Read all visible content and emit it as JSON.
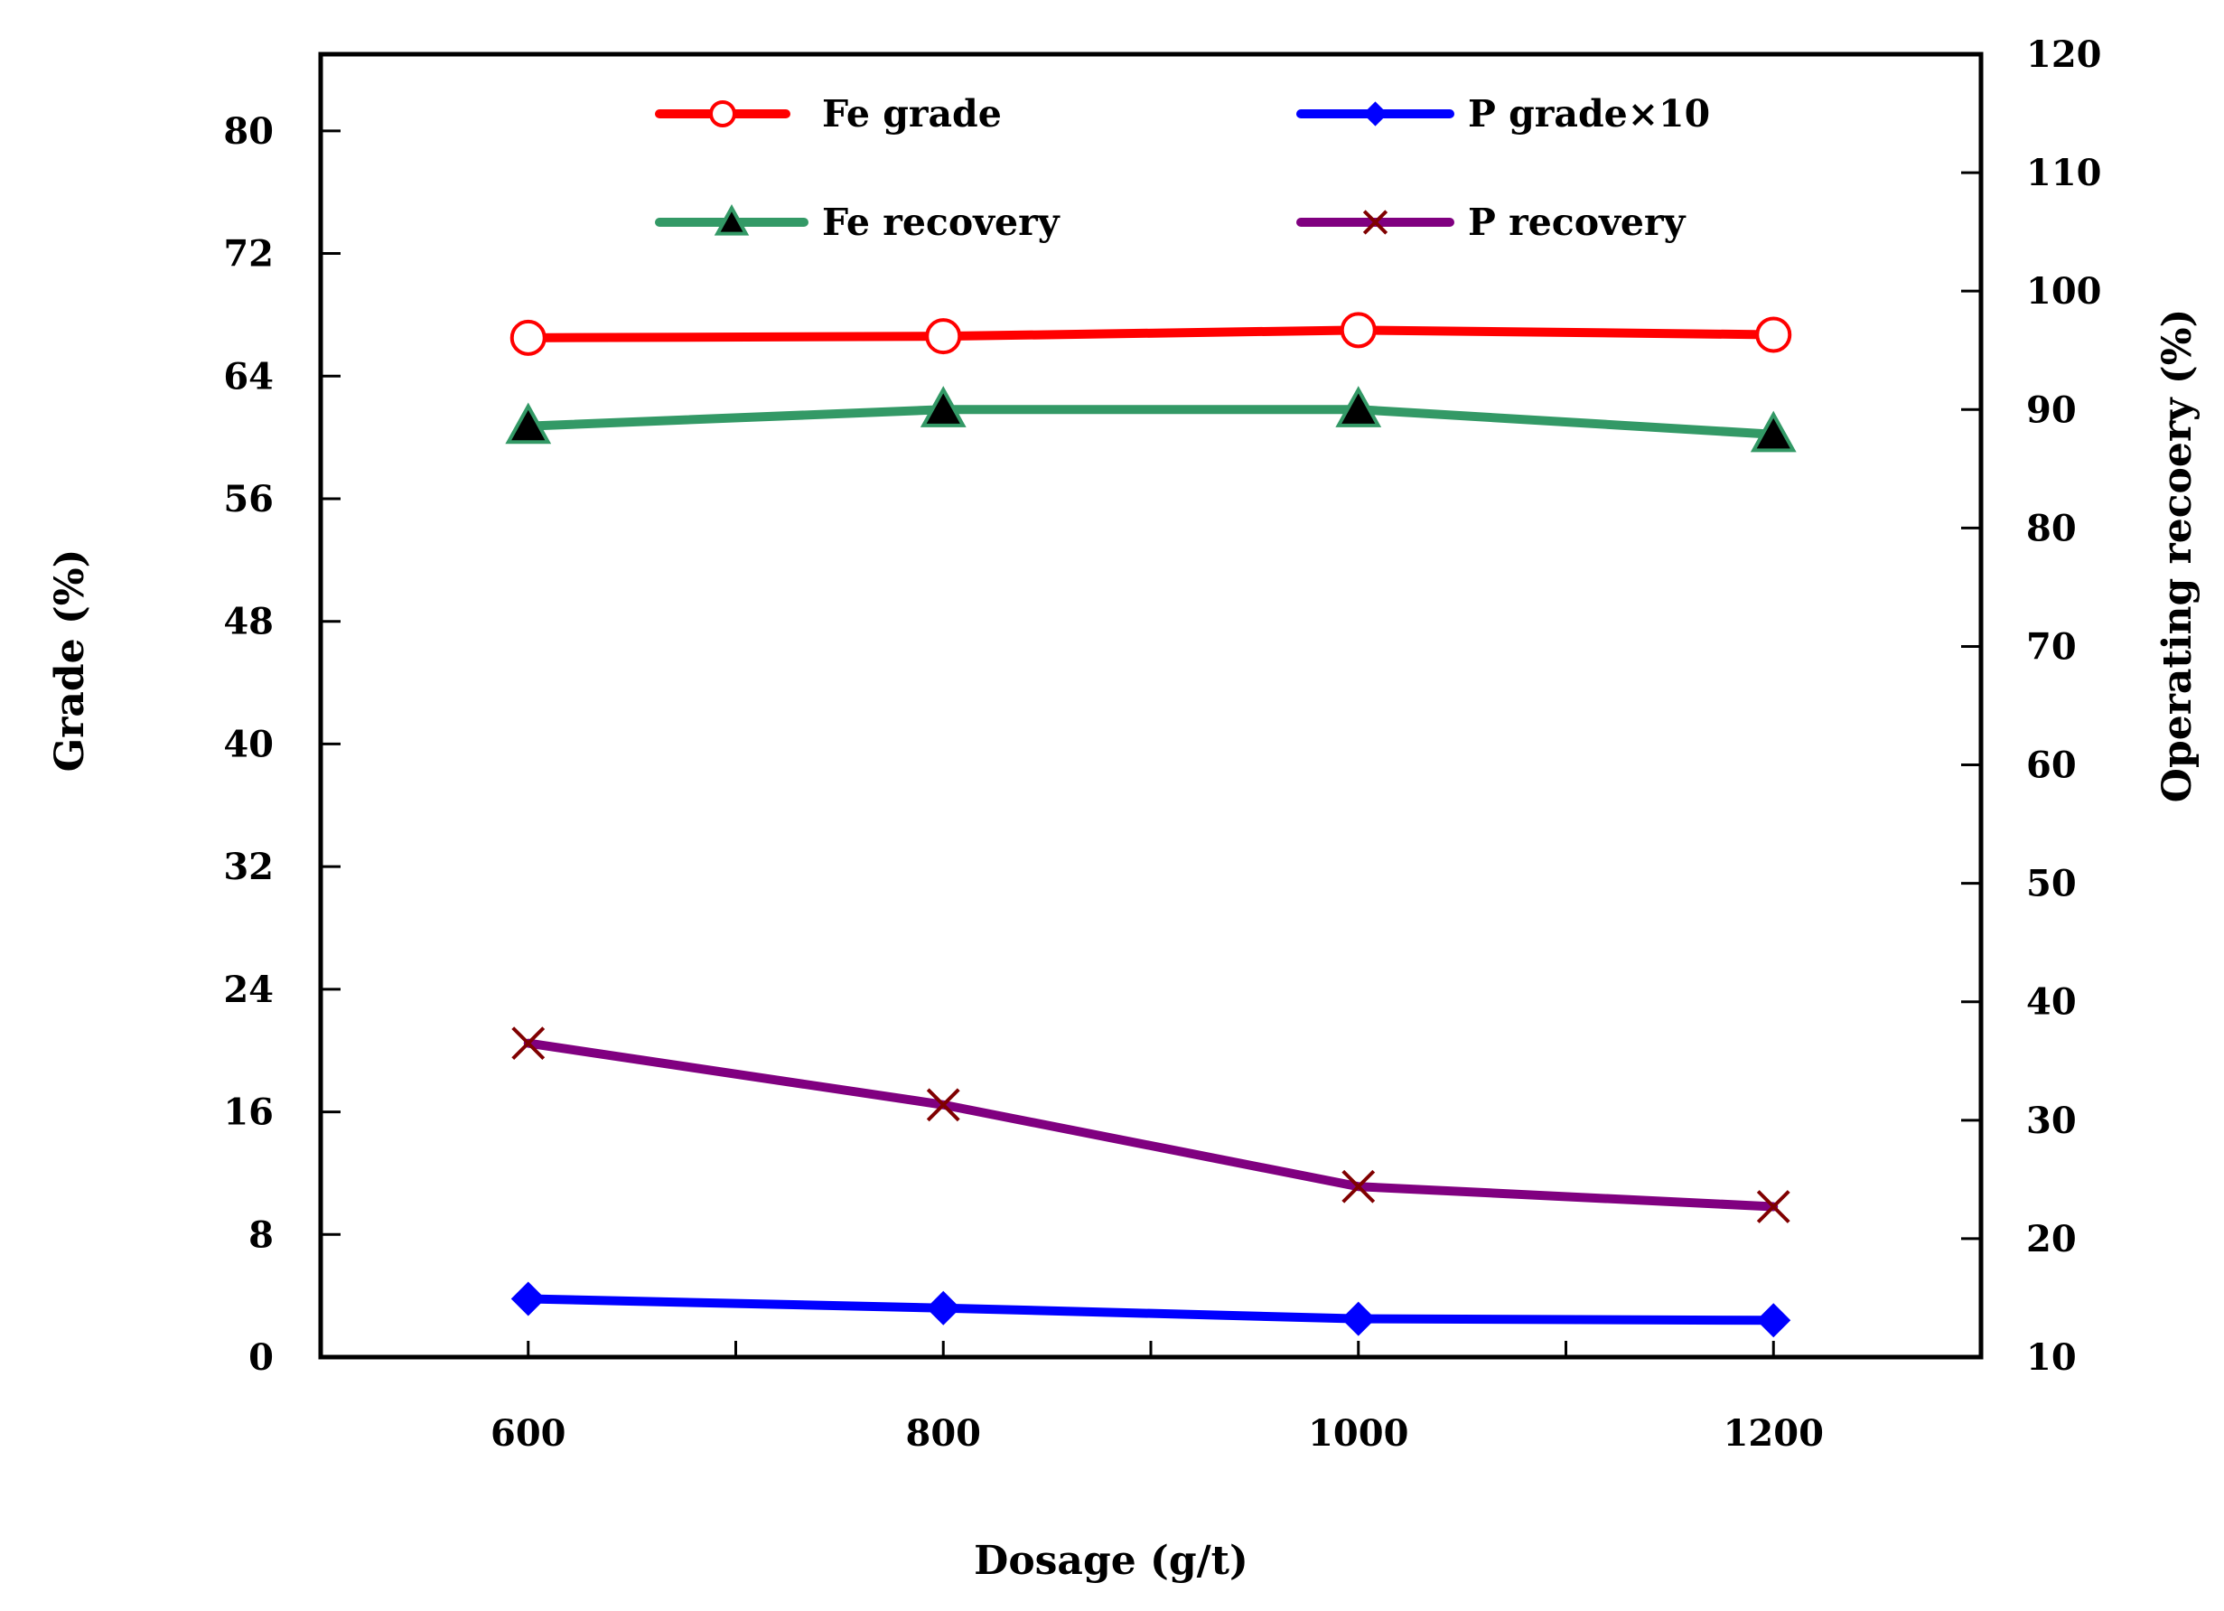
{
  "chart_data": {
    "type": "line",
    "title": "",
    "xlabel": "Dosage (g/t)",
    "ylabel": "Grade (%)",
    "y2label": "Operating recoery (%)",
    "xlim": [
      500,
      1300
    ],
    "ylim": [
      0,
      85
    ],
    "y2lim": [
      10,
      120
    ],
    "x_ticks": [
      600,
      800,
      1000,
      1200
    ],
    "x_minor_ticks": [
      700,
      900,
      1100
    ],
    "y_ticks": [
      0,
      8,
      16,
      24,
      32,
      40,
      48,
      56,
      64,
      72,
      80
    ],
    "y2_ticks": [
      10,
      20,
      30,
      40,
      50,
      60,
      70,
      80,
      90,
      100,
      110,
      120
    ],
    "x": [
      600,
      800,
      1000,
      1200
    ],
    "legend_position": "top",
    "series": [
      {
        "name": "Fe grade",
        "axis": "left",
        "values": [
          66.5,
          66.6,
          67.0,
          66.7
        ],
        "color": "#ff0000",
        "marker": "circle"
      },
      {
        "name": "P grade×10",
        "axis": "left",
        "values": [
          3.8,
          3.2,
          2.5,
          2.4
        ],
        "color": "#0000ff",
        "marker": "diamond"
      },
      {
        "name": "Fe recovery",
        "axis": "right",
        "values": [
          88.6,
          90.0,
          90.0,
          87.9
        ],
        "color": "#339966",
        "marker": "triangle"
      },
      {
        "name": "P recovery",
        "axis": "right",
        "values": [
          36.5,
          31.3,
          24.4,
          22.7
        ],
        "color": "#800080",
        "marker": "x"
      }
    ]
  }
}
